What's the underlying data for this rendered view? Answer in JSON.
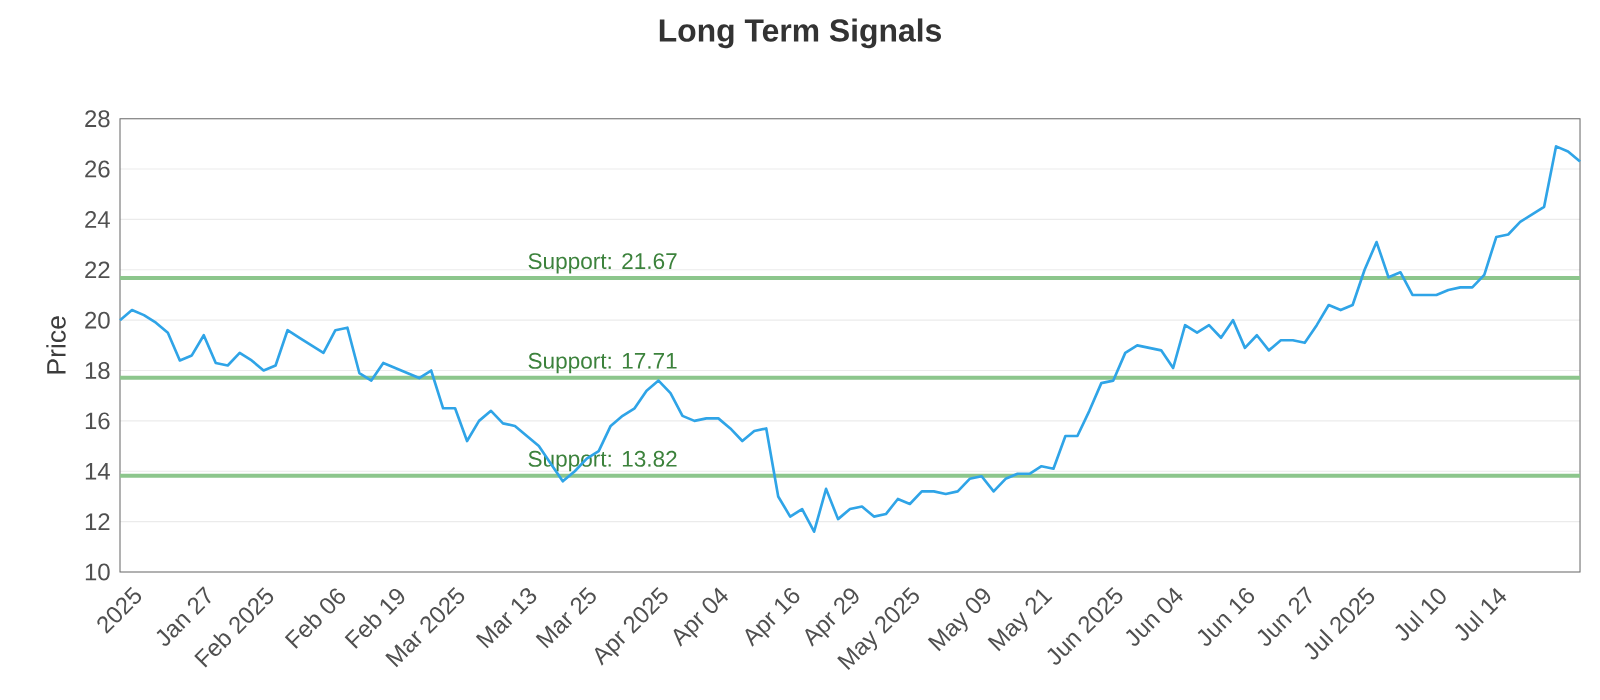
{
  "chart_data": {
    "type": "line",
    "title": "Long Term Signals",
    "ylabel": "Price",
    "categories": [
      null,
      "2025",
      null,
      null,
      null,
      null,
      null,
      "Jan 27",
      null,
      null,
      null,
      null,
      "Feb 2025",
      null,
      null,
      null,
      null,
      null,
      "Feb 06",
      null,
      null,
      null,
      null,
      "Feb 19",
      null,
      null,
      null,
      null,
      "Mar 2025",
      null,
      null,
      null,
      null,
      null,
      "Mar 13",
      null,
      null,
      null,
      null,
      "Mar 25",
      null,
      null,
      null,
      null,
      null,
      "Apr 2025",
      null,
      null,
      null,
      null,
      "Apr 04",
      null,
      null,
      null,
      null,
      null,
      "Apr 16",
      null,
      null,
      null,
      null,
      "Apr 29",
      null,
      null,
      null,
      null,
      "May 2025",
      null,
      null,
      null,
      null,
      null,
      "May 09",
      null,
      null,
      null,
      null,
      "May 21",
      null,
      null,
      null,
      null,
      null,
      "Jun 2025",
      null,
      null,
      null,
      null,
      "Jun 04",
      null,
      null,
      null,
      null,
      null,
      "Jun 16",
      null,
      null,
      null,
      null,
      "Jun 27",
      null,
      null,
      null,
      null,
      "Jul 2025",
      null,
      null,
      null,
      null,
      null,
      "Jul 10",
      null,
      null,
      null,
      null,
      "Jul 14",
      null,
      null,
      null,
      null,
      null,
      null,
      null
    ],
    "series": [
      {
        "color": "#2fa4e7",
        "values": [
          20.0,
          20.4,
          20.2,
          19.9,
          19.5,
          18.4,
          18.6,
          19.4,
          18.3,
          18.2,
          18.7,
          18.4,
          18.0,
          18.2,
          19.6,
          19.3,
          19.0,
          18.7,
          19.6,
          19.7,
          17.9,
          17.6,
          18.3,
          18.1,
          17.9,
          17.7,
          18.0,
          16.5,
          16.5,
          15.2,
          16.0,
          16.4,
          15.9,
          15.8,
          15.4,
          15.0,
          14.3,
          13.6,
          14.0,
          14.5,
          14.8,
          15.8,
          16.2,
          16.5,
          17.2,
          17.6,
          17.1,
          16.2,
          16.0,
          16.1,
          16.1,
          15.7,
          15.2,
          15.6,
          15.7,
          13.0,
          12.2,
          12.5,
          11.6,
          13.3,
          12.1,
          12.5,
          12.6,
          12.2,
          12.3,
          12.9,
          12.7,
          13.2,
          13.2,
          13.1,
          13.2,
          13.7,
          13.8,
          13.2,
          13.7,
          13.9,
          13.9,
          14.2,
          14.1,
          15.4,
          15.4,
          16.4,
          17.5,
          17.6,
          18.7,
          19.0,
          18.9,
          18.8,
          18.1,
          19.8,
          19.5,
          19.8,
          19.3,
          20.0,
          18.9,
          19.4,
          18.8,
          19.2,
          19.2,
          19.1,
          19.8,
          20.6,
          20.4,
          20.6,
          22.0,
          23.1,
          21.7,
          21.9,
          21.0,
          21.0,
          21.0,
          21.2,
          21.3,
          21.3,
          21.8,
          23.3,
          23.4,
          23.9,
          24.2,
          24.5,
          26.9,
          26.7,
          26.3
        ]
      }
    ],
    "ylim": [
      10,
      28
    ],
    "yticks": [
      10,
      12,
      14,
      16,
      18,
      20,
      22,
      24,
      26,
      28
    ],
    "grid": "y",
    "marker": "none",
    "line_style": "solid",
    "ref_lines": [
      {
        "axis": "y",
        "value": 21.67,
        "label": "Support: 21.67",
        "color": "#8cc68c"
      },
      {
        "axis": "y",
        "value": 17.71,
        "label": "Support: 17.71",
        "color": "#8cc68c"
      },
      {
        "axis": "y",
        "value": 13.82,
        "label": "Support: 13.82",
        "color": "#8cc68c"
      }
    ]
  }
}
